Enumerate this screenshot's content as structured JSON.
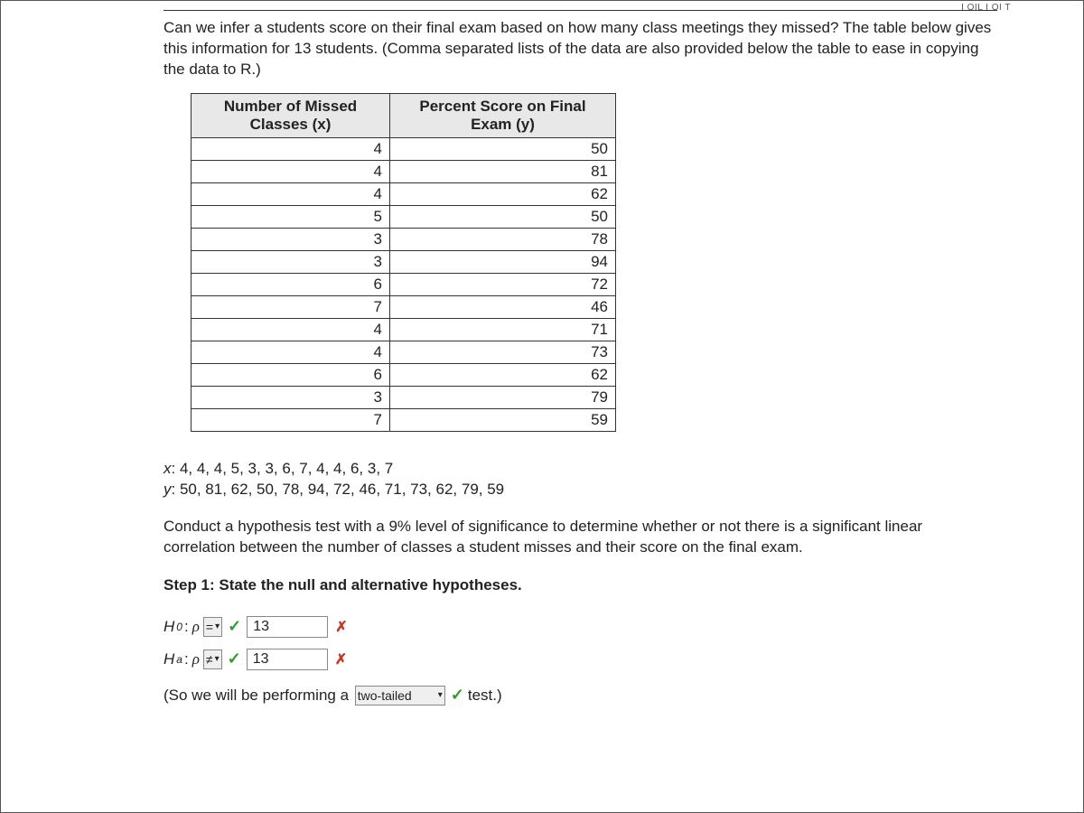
{
  "top_indicator": "I OIL I OI T",
  "problem_text": "Can we infer a students score on their final exam based on how many class meetings they missed? The table below gives this information for 13 students. (Comma separated lists of the data are also provided below the table to ease in copying the data to R.)",
  "table": {
    "headers": [
      "Number of Missed Classes (x)",
      "Percent Score on Final Exam (y)"
    ],
    "rows": [
      [
        "4",
        "50"
      ],
      [
        "4",
        "81"
      ],
      [
        "4",
        "62"
      ],
      [
        "5",
        "50"
      ],
      [
        "3",
        "78"
      ],
      [
        "3",
        "94"
      ],
      [
        "6",
        "72"
      ],
      [
        "7",
        "46"
      ],
      [
        "4",
        "71"
      ],
      [
        "4",
        "73"
      ],
      [
        "6",
        "62"
      ],
      [
        "3",
        "79"
      ],
      [
        "7",
        "59"
      ]
    ]
  },
  "lists": {
    "x_label": "x",
    "x_values": "4, 4, 4, 5, 3, 3, 6, 7, 4, 4, 6, 3, 7",
    "y_label": "y",
    "y_values": "50, 81, 62, 50, 78, 94, 72, 46, 71, 73, 62, 79, 59"
  },
  "instruction": "Conduct a hypothesis test with a 9% level of significance to determine whether or not there is a significant linear correlation between the number of classes a student misses and their score on the final exam.",
  "step1_heading": "Step 1: State the null and alternative hypotheses.",
  "h0": {
    "label": "H",
    "sub": "0",
    "rho": "ρ",
    "selected_op": "=",
    "input_value": "13"
  },
  "ha": {
    "label": "H",
    "sub": "a",
    "rho": "ρ",
    "selected_op": "≠",
    "input_value": "13"
  },
  "final": {
    "prefix": "(So we will be performing a",
    "select_value": "two-tailed",
    "suffix": "test.)"
  }
}
